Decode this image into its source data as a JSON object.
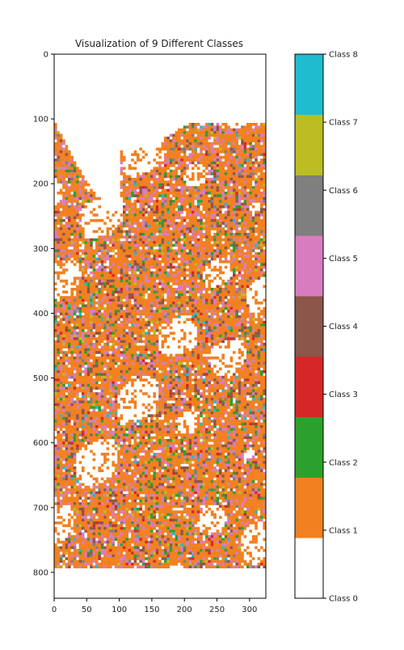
{
  "chart_data": {
    "type": "heatmap",
    "title": "Visualization of 9 Different Classes",
    "xlabel": "",
    "ylabel": "",
    "x_ticks": [
      0,
      50,
      100,
      150,
      200,
      250,
      300
    ],
    "y_ticks": [
      0,
      100,
      200,
      300,
      400,
      500,
      600,
      700,
      800
    ],
    "xlim": [
      0,
      325
    ],
    "ylim": [
      840,
      0
    ],
    "grid": false,
    "colorbar": {
      "position": "right",
      "classes": [
        {
          "label": "Class 0",
          "color": "#ffffff"
        },
        {
          "label": "Class 1",
          "color": "#f28020"
        },
        {
          "label": "Class 2",
          "color": "#2ca02c"
        },
        {
          "label": "Class 3",
          "color": "#d62728"
        },
        {
          "label": "Class 4",
          "color": "#8c564b"
        },
        {
          "label": "Class 5",
          "color": "#d87cbf"
        },
        {
          "label": "Class 6",
          "color": "#7f7f7f"
        },
        {
          "label": "Class 7",
          "color": "#bcbd22"
        },
        {
          "label": "Class 8",
          "color": "#1fbccf"
        }
      ]
    }
  }
}
